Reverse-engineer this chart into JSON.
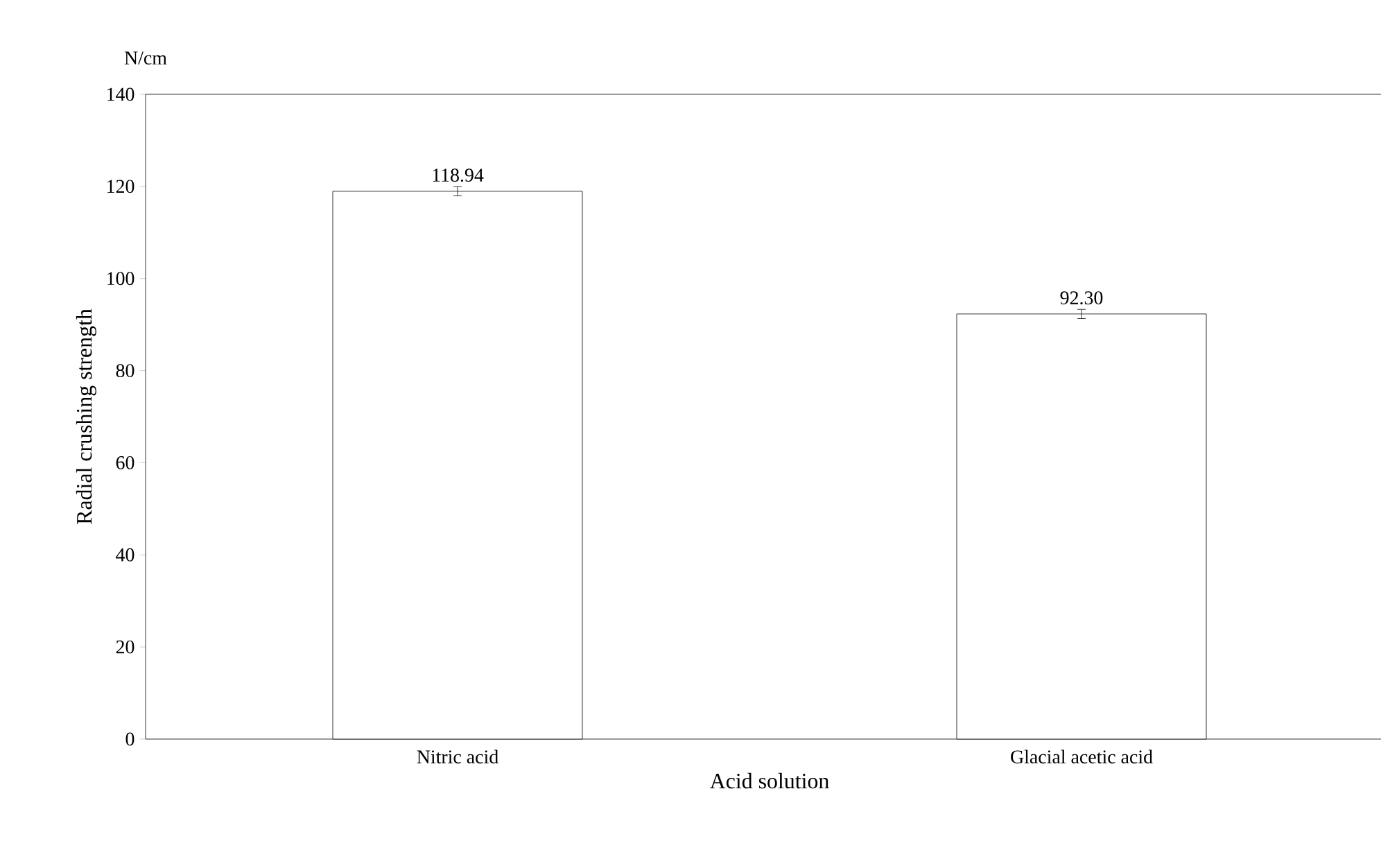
{
  "chart_data": {
    "type": "bar",
    "xlabel": "Acid solution",
    "ylabel": "Radial crushing strength",
    "annotations": [
      "N/cm"
    ],
    "categories": [
      "Nitric acid",
      "Glacial acetic acid"
    ],
    "values": [
      118.94,
      92.3
    ],
    "errors": [
      1.0,
      1.0
    ],
    "value_labels": [
      "118.94",
      "92.30"
    ],
    "color": "#ffffff",
    "ylim": [
      0,
      140
    ],
    "yticks": [
      0,
      20,
      40,
      60,
      80,
      100,
      120,
      140
    ]
  }
}
